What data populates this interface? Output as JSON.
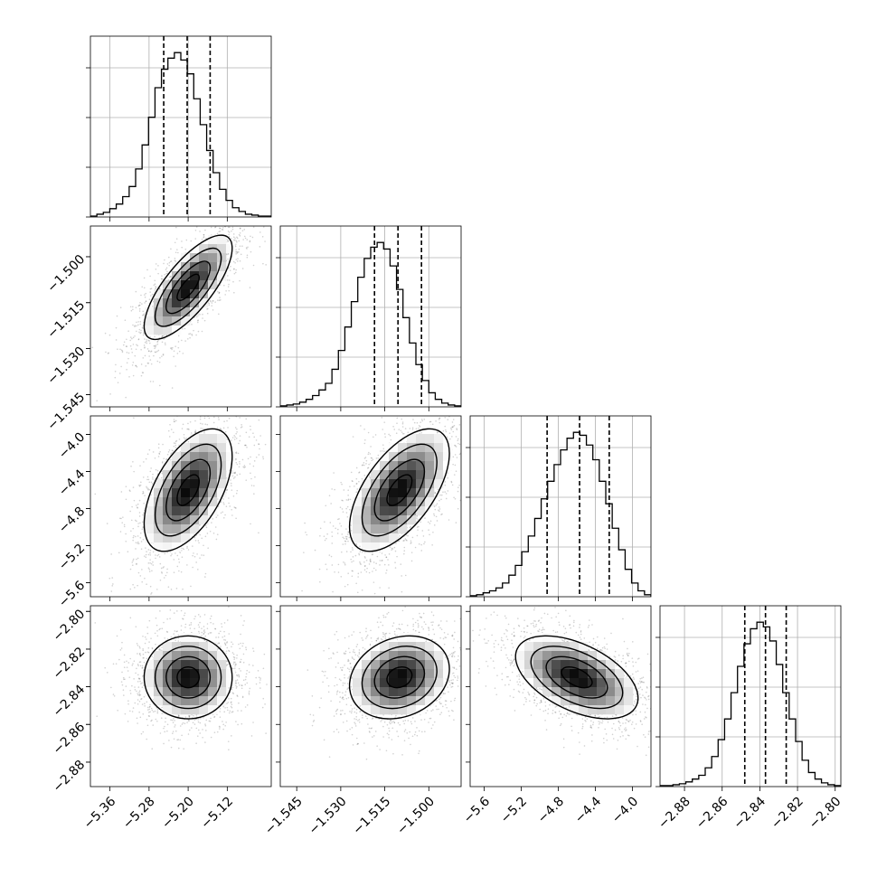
{
  "figure": {
    "type": "corner_plot",
    "parameters": 4
  },
  "chart_data": [
    {
      "type": "bar",
      "panel": "marginal-0",
      "bins_x": [
        -5.395,
        -5.382,
        -5.369,
        -5.356,
        -5.343,
        -5.33,
        -5.317,
        -5.304,
        -5.291,
        -5.278,
        -5.265,
        -5.252,
        -5.239,
        -5.226,
        -5.213,
        -5.2,
        -5.187,
        -5.174,
        -5.161,
        -5.148,
        -5.135,
        -5.122,
        -5.109,
        -5.096,
        -5.083,
        -5.07,
        -5.057,
        -5.044
      ],
      "values": [
        1,
        3,
        5,
        9,
        14,
        22,
        33,
        52,
        78,
        108,
        140,
        160,
        172,
        178,
        170,
        155,
        128,
        100,
        72,
        48,
        30,
        18,
        10,
        6,
        3,
        2,
        1,
        1
      ],
      "quantiles": [
        -5.25,
        -5.202,
        -5.155
      ],
      "xlim": [
        -5.4,
        -5.03
      ],
      "grid": true
    },
    {
      "type": "heatmap",
      "panel": "joint-0-1",
      "x_param": 0,
      "y_param": 1,
      "mean": [
        -5.2,
        -1.51
      ],
      "sd": [
        0.045,
        0.0085
      ],
      "rho": 0.75,
      "xlim": [
        -5.4,
        -5.03
      ],
      "ylim": [
        -1.549,
        -1.49
      ],
      "yticks": [
        -1.545,
        -1.53,
        -1.515,
        -1.5
      ],
      "ytick_labels": [
        "−1.545",
        "−1.530",
        "−1.515",
        "−1.500"
      ]
    },
    {
      "type": "bar",
      "panel": "marginal-1",
      "bins_x": [
        -1.5495,
        -1.5473,
        -1.5451,
        -1.5429,
        -1.5407,
        -1.5385,
        -1.5363,
        -1.5341,
        -1.5319,
        -1.5297,
        -1.5275,
        -1.5253,
        -1.5231,
        -1.5209,
        -1.5187,
        -1.5165,
        -1.5143,
        -1.5121,
        -1.5099,
        -1.5077,
        -1.5055,
        -1.5033,
        -1.5011,
        -1.4989,
        -1.4967,
        -1.4945,
        -1.4923,
        -1.4901
      ],
      "values": [
        1,
        2,
        3,
        5,
        8,
        12,
        18,
        25,
        40,
        60,
        85,
        112,
        138,
        158,
        170,
        175,
        168,
        150,
        125,
        95,
        68,
        45,
        28,
        15,
        8,
        4,
        2,
        1
      ],
      "quantiles": [
        -1.5185,
        -1.5105,
        -1.5025
      ],
      "xlim": [
        -1.5506,
        -1.489
      ],
      "grid": true
    },
    {
      "type": "heatmap",
      "panel": "joint-0-2",
      "x_param": 0,
      "y_param": 2,
      "mean": [
        -5.2,
        -4.6
      ],
      "sd": [
        0.045,
        0.33
      ],
      "rho": 0.55,
      "xlim": [
        -5.4,
        -5.03
      ],
      "ylim": [
        -5.75,
        -3.8
      ],
      "yticks": [
        -5.6,
        -5.2,
        -4.8,
        -4.4,
        -4.0
      ],
      "ytick_labels": [
        "−5.6",
        "−5.2",
        "−4.8",
        "−4.4",
        "−4.0"
      ]
    },
    {
      "type": "heatmap",
      "panel": "joint-1-2",
      "x_param": 1,
      "y_param": 2,
      "mean": [
        -1.51,
        -4.6
      ],
      "sd": [
        0.0085,
        0.33
      ],
      "rho": 0.6,
      "xlim": [
        -1.5506,
        -1.489
      ],
      "ylim": [
        -5.75,
        -3.8
      ]
    },
    {
      "type": "bar",
      "panel": "marginal-2",
      "bins_x": [
        -5.72,
        -5.65,
        -5.58,
        -5.51,
        -5.44,
        -5.37,
        -5.3,
        -5.23,
        -5.16,
        -5.09,
        -5.02,
        -4.95,
        -4.88,
        -4.81,
        -4.74,
        -4.67,
        -4.6,
        -4.53,
        -4.46,
        -4.39,
        -4.32,
        -4.25,
        -4.18,
        -4.11,
        -4.04,
        -3.97,
        -3.9,
        -3.83
      ],
      "values": [
        1,
        2,
        4,
        6,
        9,
        14,
        22,
        32,
        46,
        62,
        80,
        100,
        118,
        135,
        150,
        162,
        168,
        165,
        155,
        140,
        118,
        95,
        70,
        48,
        28,
        14,
        6,
        2
      ],
      "quantiles": [
        -4.92,
        -4.57,
        -4.25
      ],
      "xlim": [
        -5.75,
        -3.8
      ],
      "grid": true
    },
    {
      "type": "heatmap",
      "panel": "joint-0-3",
      "x_param": 0,
      "y_param": 3,
      "mean": [
        -5.2,
        -2.835
      ],
      "sd": [
        0.045,
        0.011
      ],
      "rho": 0.0,
      "xlim": [
        -5.4,
        -5.03
      ],
      "ylim": [
        -2.893,
        -2.797
      ],
      "yticks": [
        -2.88,
        -2.86,
        -2.84,
        -2.82,
        -2.8
      ],
      "ytick_labels": [
        "−2.88",
        "−2.86",
        "−2.84",
        "−2.82",
        "−2.80"
      ],
      "xticks": [
        -5.36,
        -5.28,
        -5.2,
        -5.12
      ],
      "xtick_labels": [
        "−5.36",
        "−5.28",
        "−5.20",
        "−5.12"
      ]
    },
    {
      "type": "heatmap",
      "panel": "joint-1-3",
      "x_param": 1,
      "y_param": 3,
      "mean": [
        -1.51,
        -2.835
      ],
      "sd": [
        0.0085,
        0.011
      ],
      "rho": 0.2,
      "xlim": [
        -1.5506,
        -1.489
      ],
      "ylim": [
        -2.893,
        -2.797
      ],
      "xticks": [
        -1.545,
        -1.53,
        -1.515,
        -1.5
      ],
      "xtick_labels": [
        "−1.545",
        "−1.530",
        "−1.515",
        "−1.500"
      ]
    },
    {
      "type": "heatmap",
      "panel": "joint-2-3",
      "x_param": 2,
      "y_param": 3,
      "mean": [
        -4.6,
        -2.835
      ],
      "sd": [
        0.33,
        0.011
      ],
      "rho": -0.5,
      "xlim": [
        -5.75,
        -3.8
      ],
      "ylim": [
        -2.893,
        -2.797
      ],
      "xticks": [
        -5.6,
        -5.2,
        -4.8,
        -4.4,
        -4.0
      ],
      "xtick_labels": [
        "−5.6",
        "−5.2",
        "−4.8",
        "−4.4",
        "−4.0"
      ]
    },
    {
      "type": "bar",
      "panel": "marginal-3",
      "bins_x": [
        -2.8915,
        -2.888,
        -2.8845,
        -2.881,
        -2.8775,
        -2.874,
        -2.8705,
        -2.867,
        -2.8635,
        -2.86,
        -2.8565,
        -2.853,
        -2.8495,
        -2.846,
        -2.8425,
        -2.839,
        -2.8355,
        -2.832,
        -2.8285,
        -2.825,
        -2.8215,
        -2.818,
        -2.8145,
        -2.811,
        -2.8075,
        -2.804,
        -2.8005,
        -2.797
      ],
      "values": [
        1,
        1,
        2,
        3,
        5,
        8,
        12,
        20,
        32,
        50,
        72,
        100,
        128,
        152,
        168,
        175,
        170,
        155,
        130,
        100,
        72,
        48,
        28,
        15,
        8,
        4,
        2,
        1
      ],
      "quantiles": [
        -2.848,
        -2.837,
        -2.826
      ],
      "xlim": [
        -2.893,
        -2.797
      ],
      "grid": true,
      "xticks": [
        -2.88,
        -2.86,
        -2.84,
        -2.82,
        -2.8
      ],
      "xtick_labels": [
        "−2.88",
        "−2.86",
        "−2.84",
        "−2.82",
        "−2.80"
      ]
    }
  ],
  "colors": {
    "line": "#000000",
    "grid": "#b0b0b0",
    "scatter": "#000000"
  }
}
